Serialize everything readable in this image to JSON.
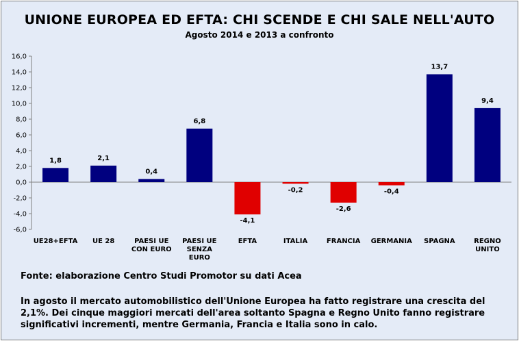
{
  "title": "UNIONE EUROPEA ED EFTA: CHI SCENDE E CHI SALE NELL'AUTO",
  "subtitle": "Agosto 2014 e 2013 a confronto",
  "source": "Fonte: elaborazione Centro Studi Promotor su dati Acea",
  "commentary": "In agosto il mercato automobilistico dell'Unione Europea ha fatto registrare una crescita del 2,1%. Dei cinque maggiori mercati dell'area soltanto Spagna e Regno Unito fanno registrare significativi incrementi, mentre Germania, Francia e Italia sono in calo.",
  "colors": {
    "positive": "#00007f",
    "negative": "#e00000",
    "background": "#e4ebf7",
    "axis": "#808080"
  },
  "chart_data": {
    "type": "bar",
    "categories": [
      [
        "UE28+EFTA"
      ],
      [
        "UE 28"
      ],
      [
        "PAESI UE",
        "CON EURO"
      ],
      [
        "PAESI UE",
        "SENZA",
        "EURO"
      ],
      [
        "EFTA"
      ],
      [
        "ITALIA"
      ],
      [
        "FRANCIA"
      ],
      [
        "GERMANIA"
      ],
      [
        "SPAGNA"
      ],
      [
        "REGNO",
        "UNITO"
      ]
    ],
    "values": [
      1.8,
      2.1,
      0.4,
      6.8,
      -4.1,
      -0.2,
      -2.6,
      -0.4,
      13.7,
      9.4
    ],
    "data_labels": [
      "1,8",
      "2,1",
      "0,4",
      "6,8",
      "-4,1",
      "-0,2",
      "-2,6",
      "-0,4",
      "13,7",
      "9,4"
    ],
    "yticks": [
      "16,0",
      "14,0",
      "12,0",
      "10,0",
      "8,0",
      "6,0",
      "4,0",
      "2,0",
      "0,0",
      "-2,0",
      "-4,0",
      "-6,0"
    ],
    "ylim": [
      -6,
      16
    ],
    "grid": false,
    "legend": "none"
  }
}
